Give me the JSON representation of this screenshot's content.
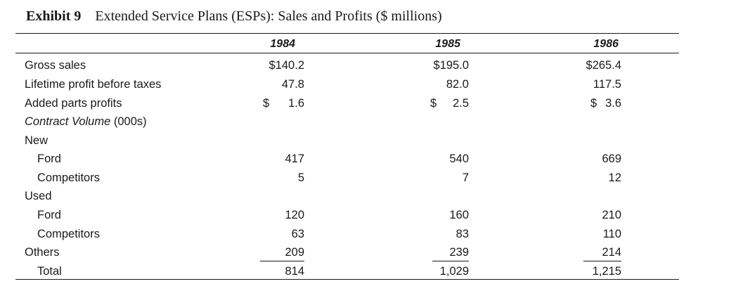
{
  "title": {
    "exhibit": "Exhibit 9",
    "text": "Extended Service Plans (ESPs): Sales and Profits ($ millions)"
  },
  "years": [
    "1984",
    "1985",
    "1986"
  ],
  "rows": {
    "gross_sales": {
      "label": "Gross sales",
      "values": [
        "$140.2",
        "$195.0",
        "$265.4"
      ]
    },
    "lifetime_profit": {
      "label": "Lifetime profit before taxes",
      "values": [
        "47.8",
        "82.0",
        "117.5"
      ]
    },
    "added_parts": {
      "label": "Added parts profits",
      "currency": "$",
      "values": [
        "1.6",
        "2.5",
        "3.6"
      ]
    },
    "contract_volume": {
      "label_italic": "Contract Volume",
      "label_rest": " (000s)"
    },
    "new": {
      "label": "New"
    },
    "new_ford": {
      "label": "Ford",
      "values": [
        "417",
        "540",
        "669"
      ]
    },
    "new_competitors": {
      "label": "Competitors",
      "values": [
        "5",
        "7",
        "12"
      ]
    },
    "used": {
      "label": "Used"
    },
    "used_ford": {
      "label": "Ford",
      "values": [
        "120",
        "160",
        "210"
      ]
    },
    "used_competitors": {
      "label": "Competitors",
      "values": [
        "63",
        "83",
        "110"
      ]
    },
    "others": {
      "label": "Others",
      "values": [
        "209",
        "239",
        "214"
      ]
    },
    "total": {
      "label": "Total",
      "values": [
        "814",
        "1,029",
        "1,215"
      ]
    }
  }
}
